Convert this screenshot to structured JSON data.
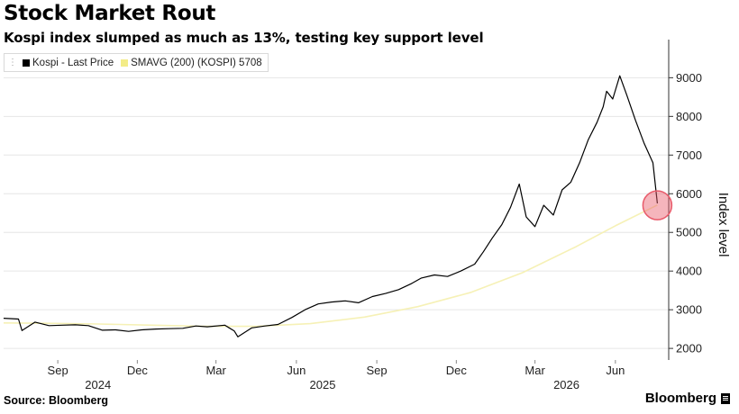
{
  "header": {
    "title": "Stock Market Rout",
    "subtitle": "Kospi index slumped as much as 13%, testing key support level"
  },
  "legend": {
    "items": [
      {
        "label": "Kospi - Last Price",
        "color": "#000000"
      },
      {
        "label": "SMAVG (200) (KOSPI) 5708",
        "color": "#f3ec88"
      }
    ]
  },
  "footer": {
    "source": "Source: Bloomberg",
    "brand": "Bloomberg"
  },
  "colors": {
    "price_line": "#000000",
    "sma_line": "#f6f1b6",
    "highlight": "#e85a6a",
    "grid": "#e6e6e6"
  },
  "chart_data": {
    "type": "line",
    "title": "Stock Market Rout",
    "subtitle": "Kospi index slumped as much as 13%, testing key support level",
    "ylabel": "Index level",
    "ylim": [
      1700,
      9800
    ],
    "yticks": [
      2000,
      3000,
      4000,
      5000,
      6000,
      7000,
      8000,
      9000
    ],
    "ytick_labels": [
      "2000",
      "3000",
      "4000",
      "5000",
      "6000",
      "7000",
      "8000",
      "9000"
    ],
    "xlim": [
      "2024-07-15",
      "2026-08-15"
    ],
    "xticks": [
      {
        "label": "Sep",
        "date": "2024-09-15"
      },
      {
        "label": "Dec",
        "date": "2024-12-15"
      },
      {
        "label": "Mar",
        "date": "2025-03-15"
      },
      {
        "label": "Jun",
        "date": "2025-06-15"
      },
      {
        "label": "Sep",
        "date": "2025-09-15"
      },
      {
        "label": "Dec",
        "date": "2025-12-15"
      },
      {
        "label": "Mar",
        "date": "2026-03-15"
      },
      {
        "label": "Jun",
        "date": "2026-06-15"
      }
    ],
    "year_labels": [
      {
        "label": "2024",
        "date": "2024-10-31"
      },
      {
        "label": "2025",
        "date": "2025-07-15"
      },
      {
        "label": "2026",
        "date": "2026-04-20"
      }
    ],
    "grid": true,
    "legend_position": "top-left",
    "series": [
      {
        "name": "Kospi - Last Price",
        "x": [
          "2024-07-15",
          "2024-08-01",
          "2024-08-05",
          "2024-08-20",
          "2024-09-05",
          "2024-09-20",
          "2024-10-05",
          "2024-10-20",
          "2024-11-05",
          "2024-11-20",
          "2024-12-05",
          "2024-12-20",
          "2025-01-05",
          "2025-01-20",
          "2025-02-05",
          "2025-02-20",
          "2025-03-05",
          "2025-03-25",
          "2025-04-05",
          "2025-04-09",
          "2025-04-25",
          "2025-05-10",
          "2025-05-25",
          "2025-06-10",
          "2025-06-25",
          "2025-07-10",
          "2025-07-25",
          "2025-08-10",
          "2025-08-25",
          "2025-09-10",
          "2025-09-25",
          "2025-10-10",
          "2025-10-25",
          "2025-11-05",
          "2025-11-20",
          "2025-12-05",
          "2025-12-20",
          "2026-01-05",
          "2026-01-15",
          "2026-01-25",
          "2026-02-05",
          "2026-02-15",
          "2026-02-25",
          "2026-03-05",
          "2026-03-15",
          "2026-03-25",
          "2026-04-05",
          "2026-04-15",
          "2026-04-25",
          "2026-05-05",
          "2026-05-15",
          "2026-05-25",
          "2026-06-01",
          "2026-06-05",
          "2026-06-12",
          "2026-06-20",
          "2026-06-28",
          "2026-07-08",
          "2026-07-18",
          "2026-07-28",
          "2026-08-02"
        ],
        "values": [
          2780,
          2760,
          2460,
          2680,
          2590,
          2600,
          2610,
          2590,
          2470,
          2480,
          2440,
          2480,
          2500,
          2510,
          2520,
          2580,
          2560,
          2600,
          2450,
          2300,
          2530,
          2580,
          2620,
          2800,
          3000,
          3150,
          3200,
          3230,
          3180,
          3340,
          3420,
          3520,
          3680,
          3820,
          3900,
          3860,
          4000,
          4180,
          4500,
          4850,
          5200,
          5650,
          6250,
          5400,
          5150,
          5700,
          5450,
          6100,
          6300,
          6800,
          7400,
          7850,
          8250,
          8650,
          8450,
          9050,
          8550,
          7900,
          7300,
          6800,
          5750
        ]
      },
      {
        "name": "SMAVG (200) (KOSPI) 5708",
        "x": [
          "2024-07-15",
          "2024-09-01",
          "2024-11-01",
          "2025-01-01",
          "2025-03-01",
          "2025-05-01",
          "2025-07-01",
          "2025-09-01",
          "2025-11-01",
          "2026-01-01",
          "2026-03-01",
          "2026-05-01",
          "2026-06-15",
          "2026-08-02"
        ],
        "values": [
          2660,
          2650,
          2630,
          2600,
          2570,
          2570,
          2640,
          2810,
          3080,
          3450,
          3960,
          4630,
          5170,
          5708
        ]
      }
    ],
    "annotations": [
      {
        "type": "circle-marker",
        "x": "2026-08-02",
        "y": 5700
      }
    ]
  }
}
